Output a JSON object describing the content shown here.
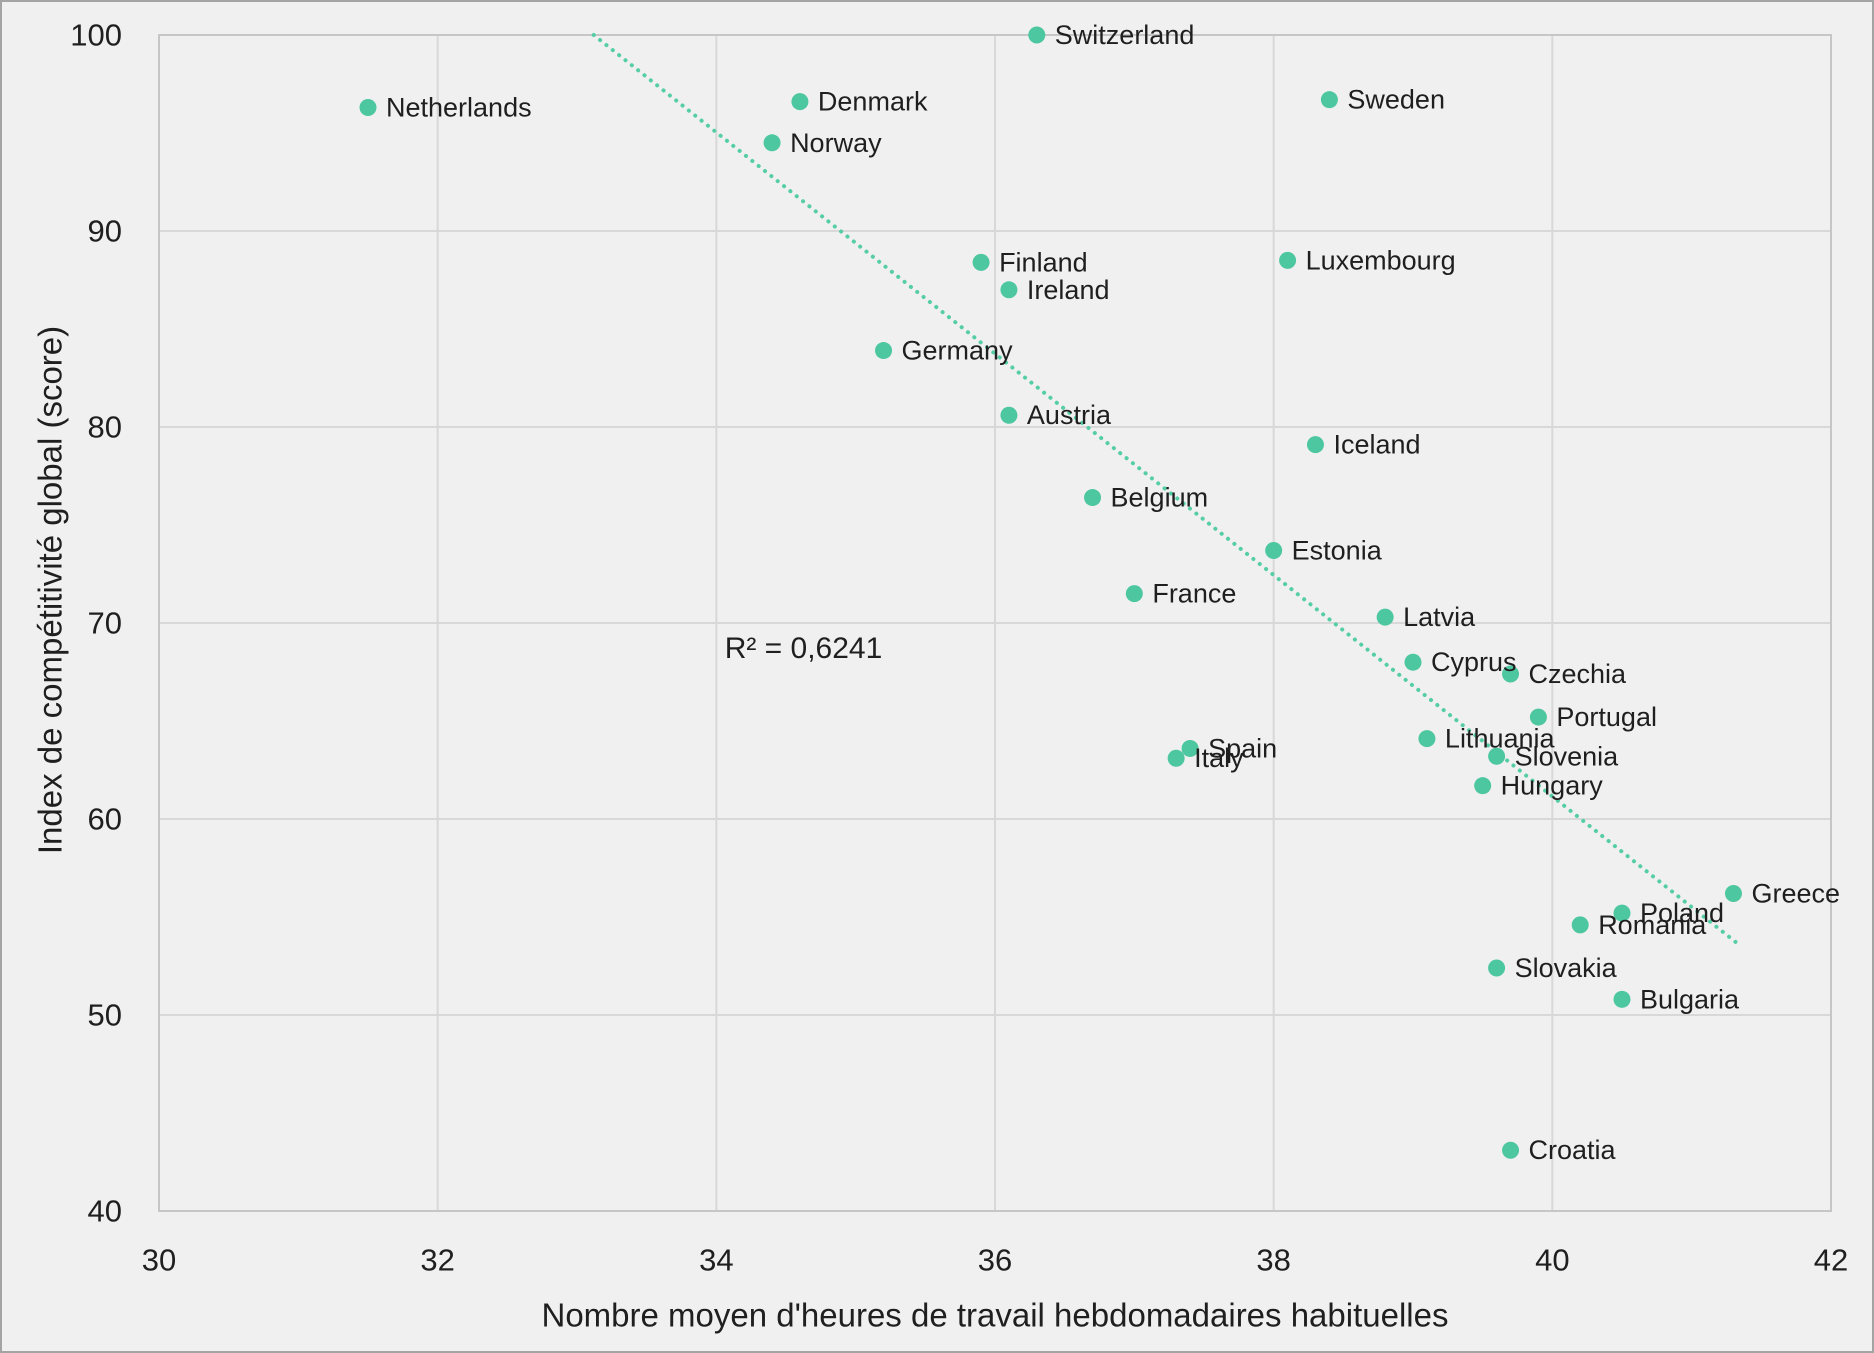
{
  "chart_data": {
    "type": "scatter",
    "title": "",
    "xlabel": "Nombre moyen d'heures de travail hebdomadaires habituelles",
    "ylabel": "Index de compétitivité global (score)",
    "xlim": [
      30,
      42
    ],
    "ylim": [
      40,
      100
    ],
    "x_ticks": [
      30,
      32,
      34,
      36,
      38,
      40,
      42
    ],
    "y_ticks": [
      40,
      50,
      60,
      70,
      80,
      90,
      100
    ],
    "grid": true,
    "legend": "none",
    "points": [
      {
        "label": "Switzerland",
        "x": 36.3,
        "y": 100.0
      },
      {
        "label": "Netherlands",
        "x": 31.5,
        "y": 96.3
      },
      {
        "label": "Sweden",
        "x": 38.4,
        "y": 96.7
      },
      {
        "label": "Denmark",
        "x": 34.6,
        "y": 96.6
      },
      {
        "label": "Norway",
        "x": 34.4,
        "y": 94.5
      },
      {
        "label": "Luxembourg",
        "x": 38.1,
        "y": 88.5
      },
      {
        "label": "Finland",
        "x": 35.9,
        "y": 88.4
      },
      {
        "label": "Ireland",
        "x": 36.1,
        "y": 87.0
      },
      {
        "label": "Germany",
        "x": 35.2,
        "y": 83.9
      },
      {
        "label": "Austria",
        "x": 36.1,
        "y": 80.6
      },
      {
        "label": "Iceland",
        "x": 38.3,
        "y": 79.1
      },
      {
        "label": "Belgium",
        "x": 36.7,
        "y": 76.4
      },
      {
        "label": "Estonia",
        "x": 38.0,
        "y": 73.7
      },
      {
        "label": "France",
        "x": 37.0,
        "y": 71.5
      },
      {
        "label": "Latvia",
        "x": 38.8,
        "y": 70.3
      },
      {
        "label": "Cyprus",
        "x": 39.0,
        "y": 68.0
      },
      {
        "label": "Czechia",
        "x": 39.7,
        "y": 67.4
      },
      {
        "label": "Portugal",
        "x": 39.9,
        "y": 65.2
      },
      {
        "label": "Lithuania",
        "x": 39.1,
        "y": 64.1
      },
      {
        "label": "Spain",
        "x": 37.4,
        "y": 63.6
      },
      {
        "label": "Italy",
        "x": 37.3,
        "y": 63.1
      },
      {
        "label": "Slovenia",
        "x": 39.6,
        "y": 63.2
      },
      {
        "label": "Hungary",
        "x": 39.5,
        "y": 61.7
      },
      {
        "label": "Greece",
        "x": 41.3,
        "y": 56.2
      },
      {
        "label": "Poland",
        "x": 40.5,
        "y": 55.2
      },
      {
        "label": "Romania",
        "x": 40.2,
        "y": 54.6
      },
      {
        "label": "Slovakia",
        "x": 39.6,
        "y": 52.4
      },
      {
        "label": "Bulgaria",
        "x": 40.5,
        "y": 50.8
      },
      {
        "label": "Croatia",
        "x": 39.7,
        "y": 43.1
      }
    ],
    "trendline": {
      "x1": 33.12,
      "y1": 100.0,
      "x2": 41.32,
      "y2": 53.7,
      "style": "dotted"
    },
    "annotation": {
      "text": "R² = 0,6241",
      "x": 34.06,
      "y": 68.7
    },
    "colors": {
      "point": "#4dc79f",
      "trend": "#55cda6",
      "grid": "#d8d8d8",
      "plot_border": "#c6c6c6",
      "text": "#1f1f1f",
      "background": "#f0f0f0",
      "frame_border": "#a4a4a4"
    }
  }
}
